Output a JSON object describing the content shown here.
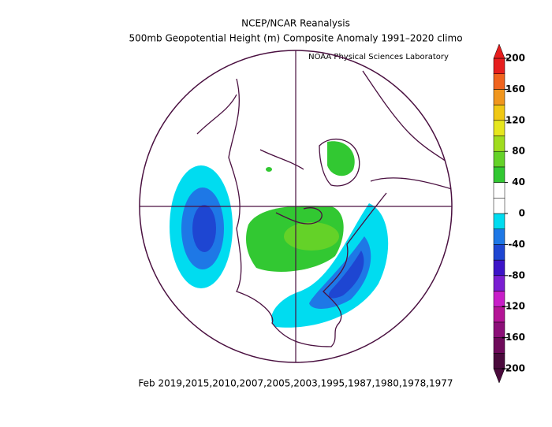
{
  "header": {
    "title": "NCEP/NCAR Reanalysis",
    "subtitle": "500mb Geopotential Height (m) Composite Anomaly 1991–2020 climo",
    "credit": "NOAA Physical Sciences Laboratory"
  },
  "footer": "Feb 2019,2015,2010,2007,2005,2003,1995,1987,1980,1978,1977",
  "colorbar": {
    "ticks": [
      -200,
      -160,
      -120,
      -80,
      -40,
      0,
      40,
      80,
      120,
      160,
      200
    ],
    "colors": [
      "#4a0a3c",
      "#6e0a5a",
      "#8c0f78",
      "#b41496",
      "#c81ec8",
      "#7a1ed2",
      "#3c14c8",
      "#1e46d2",
      "#1e78e6",
      "#00dcf0",
      "#ffffff",
      "#ffffff",
      "#32c832",
      "#64d228",
      "#a0dc1e",
      "#e6e61e",
      "#f0c814",
      "#f0961e",
      "#f0641e",
      "#e61e1e"
    ]
  }
}
